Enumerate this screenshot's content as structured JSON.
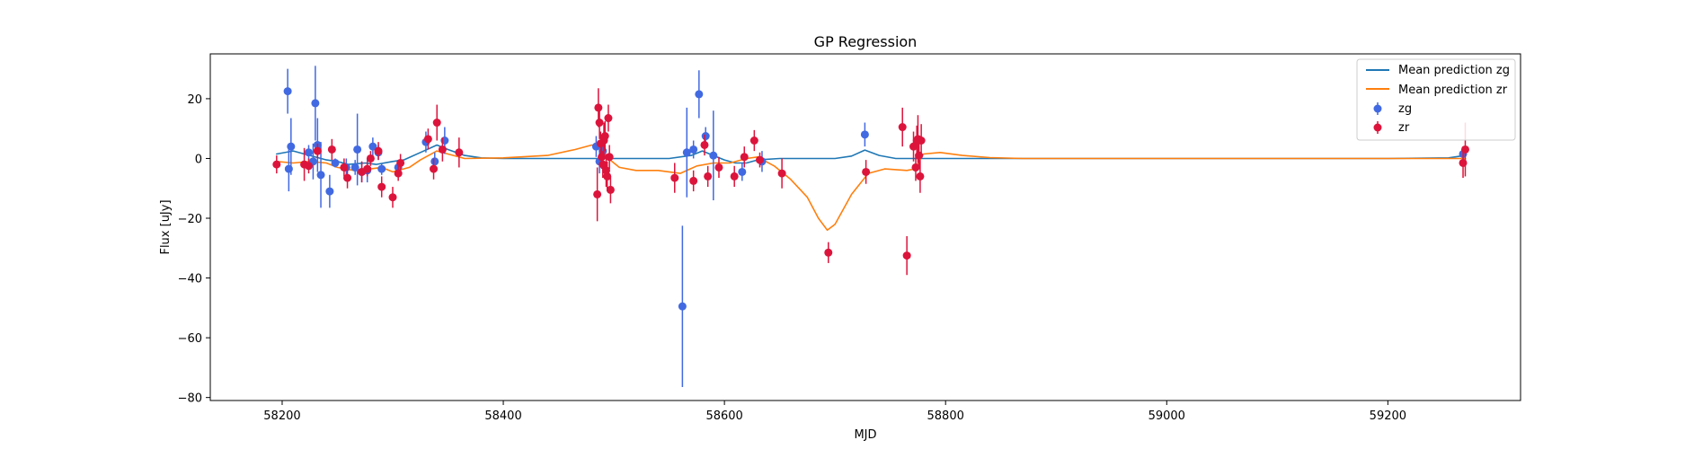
{
  "chart_data": {
    "type": "scatter",
    "title": "GP Regression",
    "xlabel": "MJD",
    "ylabel": "Flux [uJy]",
    "xlim": [
      58135,
      59320
    ],
    "ylim": [
      -81,
      35
    ],
    "xticks": [
      58200,
      58400,
      58600,
      58800,
      59000,
      59200
    ],
    "yticks": [
      -80,
      -60,
      -40,
      -20,
      0,
      20
    ],
    "grid": false,
    "legend_position": "top-right",
    "legend": [
      "Mean prediction zg",
      "Mean prediction zr",
      "zg",
      "zr"
    ],
    "colors": {
      "line_zg": "#1f77b4",
      "line_zr": "#ff7f0e",
      "points_zg": "#4169e1",
      "points_zr": "#dc143c"
    },
    "lines": [
      {
        "name": "Mean prediction zg",
        "color": "#1f77b4",
        "points": [
          [
            58195,
            1.5
          ],
          [
            58210,
            2.5
          ],
          [
            58225,
            1.0
          ],
          [
            58240,
            -0.5
          ],
          [
            58250,
            -1.0
          ],
          [
            58260,
            -2.0
          ],
          [
            58275,
            -1.5
          ],
          [
            58285,
            -2.0
          ],
          [
            58300,
            -1.0
          ],
          [
            58310,
            -0.5
          ],
          [
            58325,
            2.0
          ],
          [
            58340,
            4.5
          ],
          [
            58350,
            3.0
          ],
          [
            58365,
            1.0
          ],
          [
            58380,
            0.2
          ],
          [
            58400,
            0
          ],
          [
            58450,
            0
          ],
          [
            58500,
            0
          ],
          [
            58550,
            0
          ],
          [
            58570,
            1.0
          ],
          [
            58580,
            2.5
          ],
          [
            58590,
            1.0
          ],
          [
            58600,
            -0.5
          ],
          [
            58610,
            -1.5
          ],
          [
            58620,
            -1.5
          ],
          [
            58630,
            -0.5
          ],
          [
            58650,
            0
          ],
          [
            58700,
            0
          ],
          [
            58715,
            0.8
          ],
          [
            58727,
            2.8
          ],
          [
            58740,
            1.0
          ],
          [
            58755,
            0
          ],
          [
            58900,
            0
          ],
          [
            59000,
            0
          ],
          [
            59200,
            0
          ],
          [
            59255,
            0.2
          ],
          [
            59270,
            1.0
          ]
        ]
      },
      {
        "name": "Mean prediction zr",
        "color": "#ff7f0e",
        "points": [
          [
            58195,
            -1.0
          ],
          [
            58210,
            -1.5
          ],
          [
            58225,
            -1.0
          ],
          [
            58240,
            -1.5
          ],
          [
            58250,
            -3.0
          ],
          [
            58265,
            -4.0
          ],
          [
            58280,
            -3.5
          ],
          [
            58290,
            -3.0
          ],
          [
            58300,
            -4.5
          ],
          [
            58315,
            -3.0
          ],
          [
            58325,
            -0.5
          ],
          [
            58340,
            2.5
          ],
          [
            58350,
            1.5
          ],
          [
            58365,
            0
          ],
          [
            58400,
            0.2
          ],
          [
            58440,
            1.0
          ],
          [
            58465,
            3.0
          ],
          [
            58480,
            4.5
          ],
          [
            58487,
            4.0
          ],
          [
            58495,
            0
          ],
          [
            58505,
            -3.0
          ],
          [
            58520,
            -4.0
          ],
          [
            58540,
            -4.0
          ],
          [
            58560,
            -5.0
          ],
          [
            58575,
            -2.5
          ],
          [
            58590,
            -1.5
          ],
          [
            58605,
            -1.5
          ],
          [
            58620,
            0
          ],
          [
            58630,
            0.5
          ],
          [
            58645,
            -2.5
          ],
          [
            58660,
            -7.0
          ],
          [
            58675,
            -13.0
          ],
          [
            58685,
            -20.0
          ],
          [
            58693,
            -24.0
          ],
          [
            58700,
            -22.0
          ],
          [
            58715,
            -12.0
          ],
          [
            58730,
            -5.0
          ],
          [
            58745,
            -3.5
          ],
          [
            58765,
            -4.0
          ],
          [
            58772,
            -3.5
          ],
          [
            58780,
            1.5
          ],
          [
            58795,
            2.0
          ],
          [
            58815,
            1.0
          ],
          [
            58840,
            0.3
          ],
          [
            58870,
            0
          ],
          [
            59000,
            0
          ],
          [
            59200,
            0
          ],
          [
            59270,
            0
          ]
        ]
      }
    ],
    "series": [
      {
        "name": "zg",
        "color": "#4169e1",
        "points": [
          [
            58205,
            22.5,
            7.5
          ],
          [
            58206,
            -3.5,
            7.5
          ],
          [
            58208,
            4.0,
            9.5
          ],
          [
            58224,
            2.0,
            2.5
          ],
          [
            58228,
            -1.0,
            6.0
          ],
          [
            58230,
            18.5,
            12.5
          ],
          [
            58232,
            4.5,
            9.0
          ],
          [
            58235,
            -5.5,
            11.0
          ],
          [
            58243,
            -11.0,
            5.5
          ],
          [
            58248,
            -1.5,
            1.5
          ],
          [
            58258,
            -3.0,
            3.0
          ],
          [
            58266,
            -3.0,
            2.5
          ],
          [
            58268,
            3.0,
            12.0
          ],
          [
            58272,
            -4.5,
            3.5
          ],
          [
            58277,
            -4.0,
            4.0
          ],
          [
            58282,
            4.0,
            3.0
          ],
          [
            58287,
            2.0,
            2.5
          ],
          [
            58290,
            -3.5,
            2.0
          ],
          [
            58305,
            -3.0,
            2.5
          ],
          [
            58330,
            5.5,
            3.5
          ],
          [
            58338,
            -1.0,
            3.0
          ],
          [
            58347,
            6.0,
            4.5
          ],
          [
            58484,
            4.0,
            3.5
          ],
          [
            58487,
            -1.0,
            4.0
          ],
          [
            58490,
            2.5,
            3.5
          ],
          [
            58562,
            -49.5,
            27.0
          ],
          [
            58566,
            2.0,
            15.0
          ],
          [
            58572,
            3.0,
            3.0
          ],
          [
            58577,
            21.5,
            8.0
          ],
          [
            58583,
            7.5,
            3.0
          ],
          [
            58590,
            1.0,
            15.0
          ],
          [
            58616,
            -4.5,
            3.0
          ],
          [
            58634,
            -1.0,
            3.5
          ],
          [
            58727,
            8.0,
            4.0
          ],
          [
            59268,
            1.5,
            2.5
          ]
        ]
      },
      {
        "name": "zr",
        "color": "#dc143c",
        "points": [
          [
            58195,
            -2.0,
            3.0
          ],
          [
            58220,
            -2.0,
            5.5
          ],
          [
            58224,
            -2.5,
            2.5
          ],
          [
            58232,
            2.5,
            2.5
          ],
          [
            58245,
            3.0,
            3.5
          ],
          [
            58256,
            -3.0,
            3.0
          ],
          [
            58259,
            -6.5,
            3.5
          ],
          [
            58272,
            -4.5,
            3.5
          ],
          [
            58277,
            -3.5,
            2.5
          ],
          [
            58280,
            0,
            2.5
          ],
          [
            58287,
            2.5,
            3.0
          ],
          [
            58290,
            -9.5,
            3.5
          ],
          [
            58300,
            -13.0,
            3.5
          ],
          [
            58305,
            -5.0,
            2.5
          ],
          [
            58307,
            -1.5,
            3.0
          ],
          [
            58332,
            6.5,
            3.5
          ],
          [
            58337,
            -3.5,
            3.5
          ],
          [
            58340,
            12.0,
            6.0
          ],
          [
            58345,
            3.0,
            4.0
          ],
          [
            58360,
            2.0,
            5.0
          ],
          [
            58485,
            -12.0,
            9.0
          ],
          [
            58486,
            17.0,
            6.5
          ],
          [
            58487,
            12.0,
            5.5
          ],
          [
            58488,
            5.0,
            4.0
          ],
          [
            58489,
            0.5,
            4.0
          ],
          [
            58490,
            -2.0,
            4.5
          ],
          [
            58491,
            6.0,
            6.0
          ],
          [
            58492,
            7.5,
            5.0
          ],
          [
            58493,
            -4.0,
            5.5
          ],
          [
            58494,
            -6.0,
            5.0
          ],
          [
            58495,
            13.5,
            4.5
          ],
          [
            58496,
            0.5,
            4.0
          ],
          [
            58497,
            -10.5,
            4.5
          ],
          [
            58555,
            -6.5,
            5.0
          ],
          [
            58572,
            -7.5,
            3.5
          ],
          [
            58582,
            4.5,
            3.5
          ],
          [
            58585,
            -6.0,
            3.5
          ],
          [
            58595,
            -3.0,
            3.5
          ],
          [
            58609,
            -6.0,
            3.5
          ],
          [
            58618,
            0.5,
            3.5
          ],
          [
            58627,
            6.0,
            3.5
          ],
          [
            58632,
            -0.5,
            2.5
          ],
          [
            58652,
            -5.0,
            5.0
          ],
          [
            58694,
            -31.5,
            3.5
          ],
          [
            58728,
            -4.5,
            4.0
          ],
          [
            58761,
            10.5,
            6.5
          ],
          [
            58765,
            -32.5,
            6.5
          ],
          [
            58771,
            4.0,
            5.0
          ],
          [
            58773,
            -3.0,
            4.5
          ],
          [
            58774,
            6.0,
            5.0
          ],
          [
            58775,
            6.5,
            8.0
          ],
          [
            58776,
            1.0,
            4.5
          ],
          [
            58777,
            -6.0,
            5.5
          ],
          [
            58778,
            6.0,
            5.5
          ],
          [
            59268,
            -1.5,
            5.0
          ],
          [
            59270,
            3.0,
            9.0
          ]
        ]
      }
    ]
  }
}
